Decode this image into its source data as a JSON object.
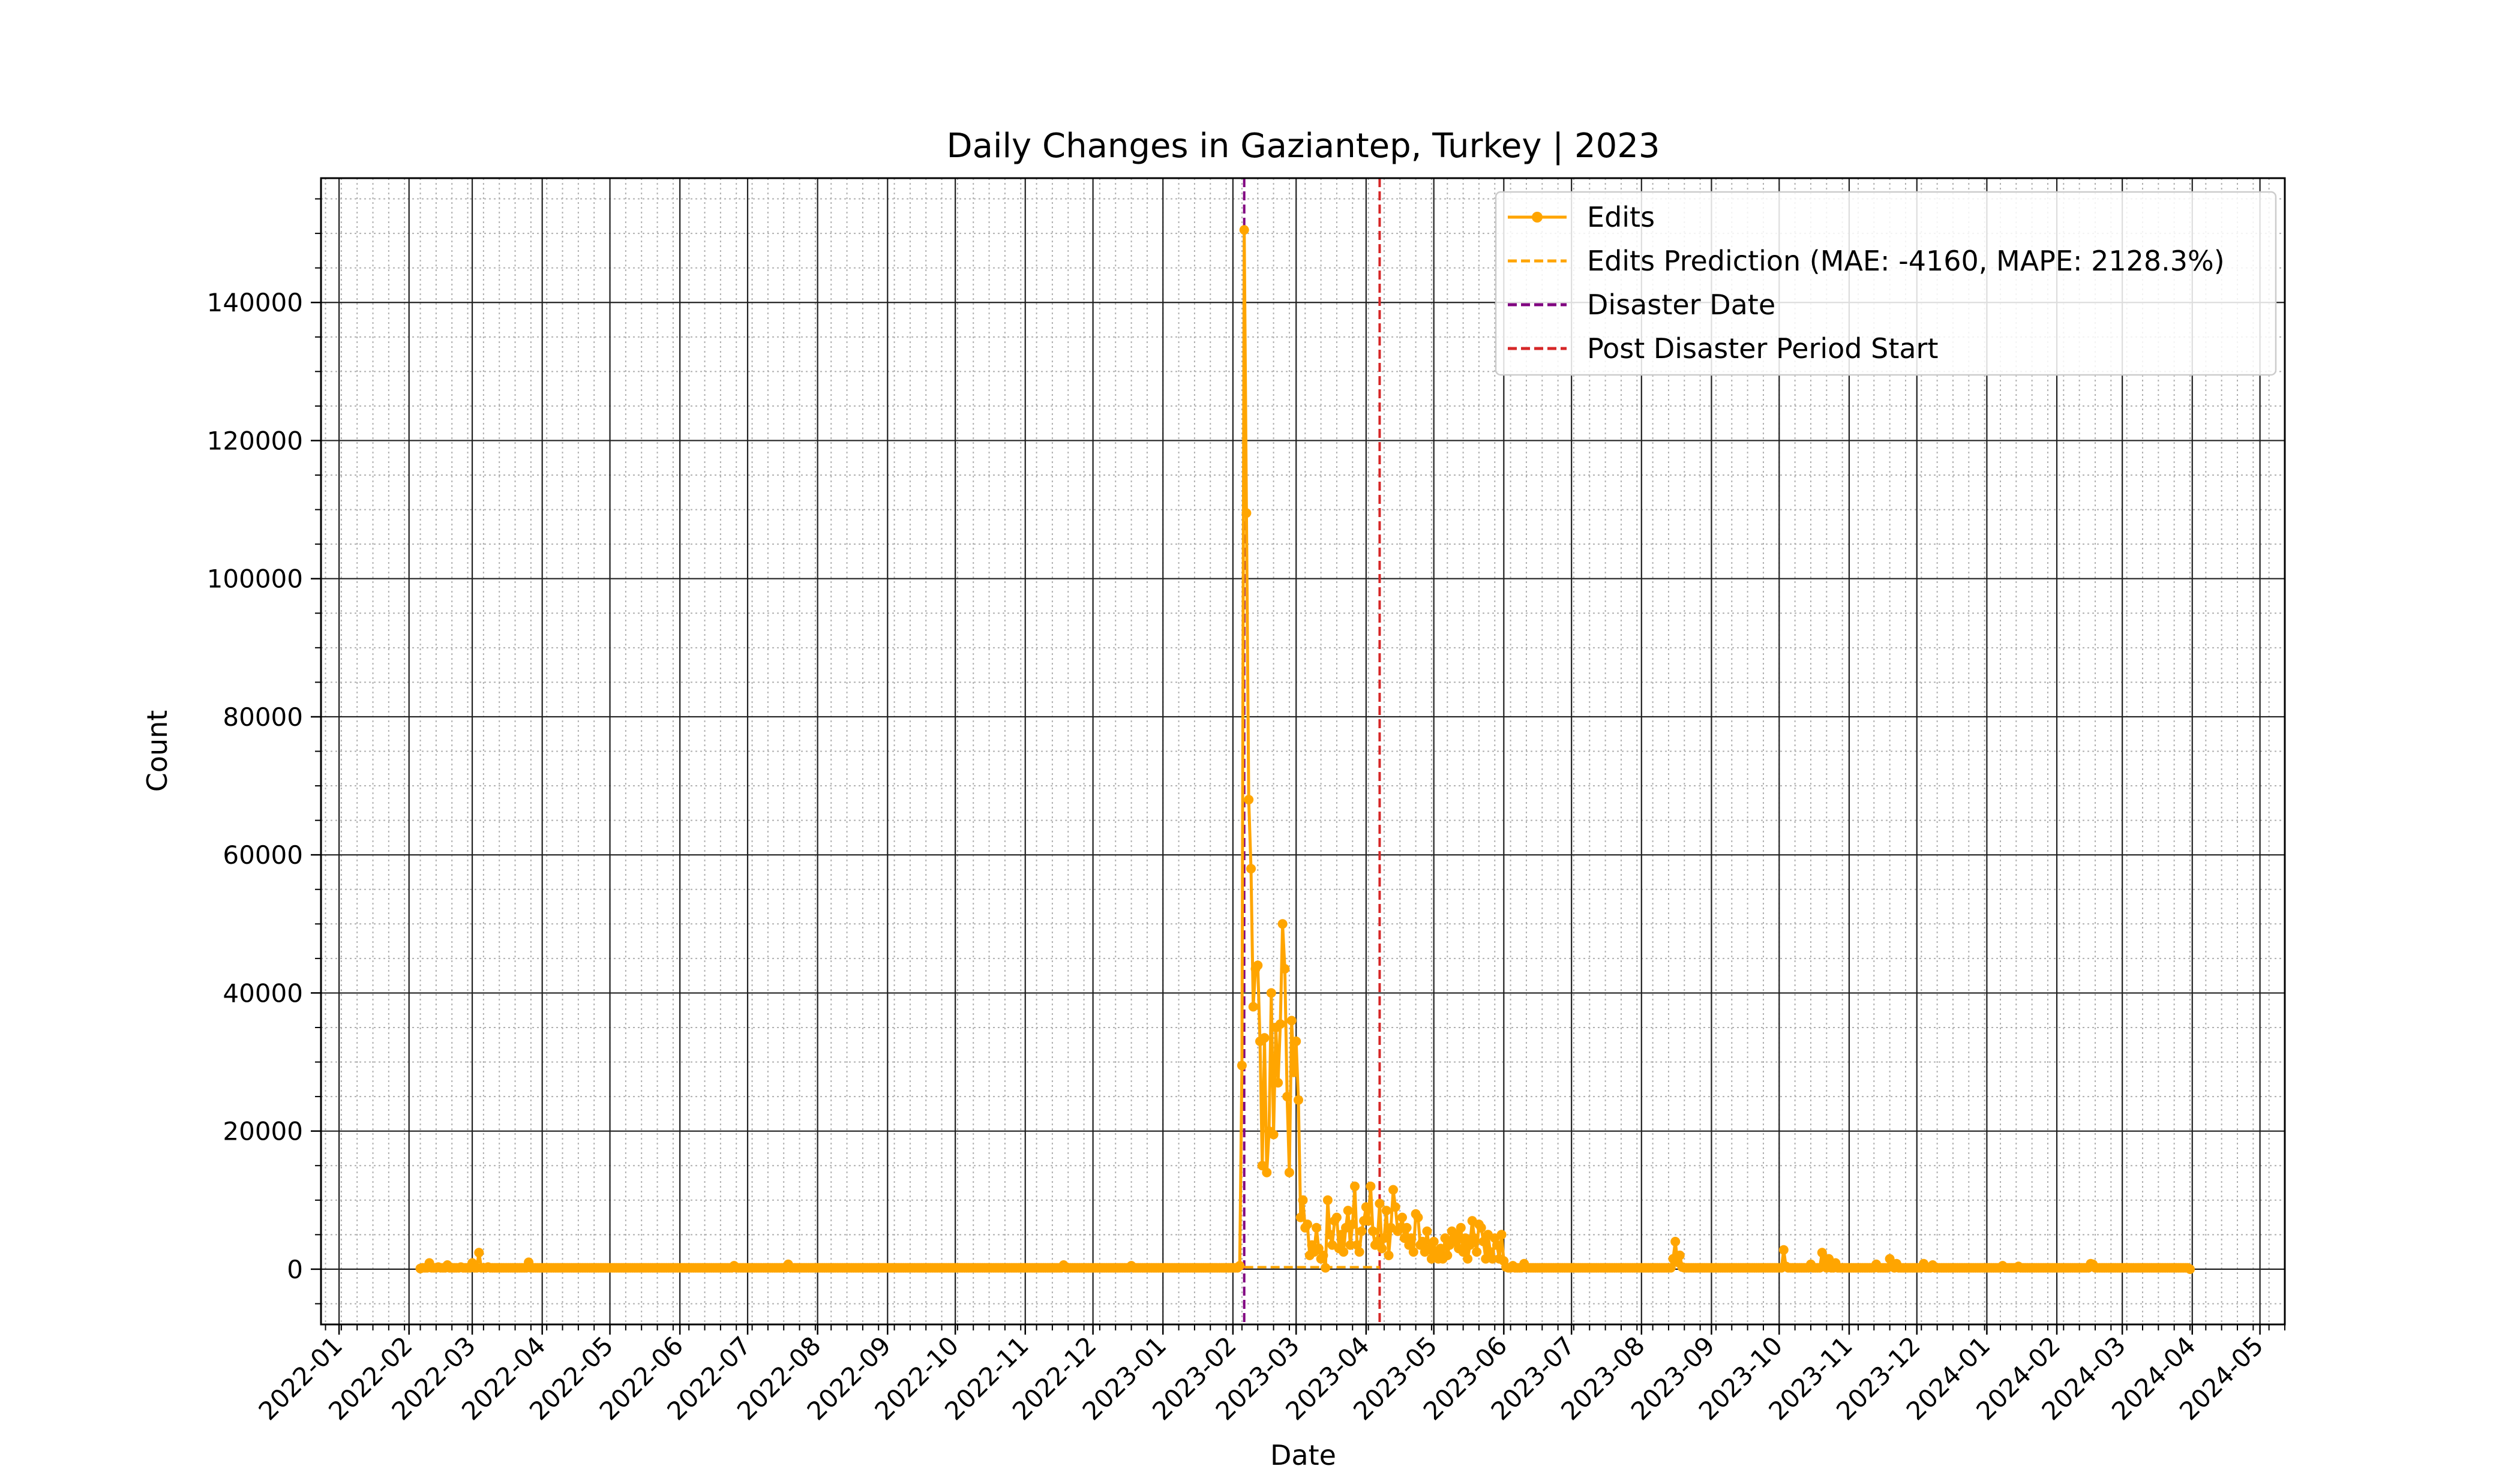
{
  "chart_data": {
    "type": "line",
    "title": "Daily Changes in Gaziantep, Turkey | 2023",
    "xlabel": "Date",
    "ylabel": "Count",
    "xlim": [
      "2021-12-24",
      "2024-05-12"
    ],
    "ylim": [
      -8000,
      158000
    ],
    "x_tick_labels": [
      "2022-01",
      "2022-02",
      "2022-03",
      "2022-04",
      "2022-05",
      "2022-06",
      "2022-07",
      "2022-08",
      "2022-09",
      "2022-10",
      "2022-11",
      "2022-12",
      "2023-01",
      "2023-02",
      "2023-03",
      "2023-04",
      "2023-05",
      "2023-06",
      "2023-07",
      "2023-08",
      "2023-09",
      "2023-10",
      "2023-11",
      "2023-12",
      "2024-01",
      "2024-02",
      "2024-03",
      "2024-04",
      "2024-05"
    ],
    "y_ticks": [
      0,
      20000,
      40000,
      60000,
      80000,
      100000,
      120000,
      140000
    ],
    "grid": "major and minor",
    "legend_position": "upper right",
    "legend": [
      {
        "label": "Edits",
        "color": "#ffa500",
        "style": "solid-marker"
      },
      {
        "label": "Edits Prediction (MAE: -4160, MAPE: 2128.3%)",
        "color": "#ffa500",
        "style": "dashed"
      },
      {
        "label": "Disaster Date",
        "color": "#800080",
        "style": "dashed"
      },
      {
        "label": "Post Disaster Period Start",
        "color": "#d62728",
        "style": "dashed"
      }
    ],
    "vlines": [
      {
        "name": "Disaster Date",
        "date": "2023-02-06",
        "color": "#800080"
      },
      {
        "name": "Post Disaster Period Start",
        "date": "2023-04-07",
        "color": "#d62728"
      }
    ],
    "series": [
      {
        "name": "Edits",
        "color": "#ffa500",
        "start": "2022-02-06",
        "end": "2024-03-31",
        "baseline": 200,
        "points": [
          [
            "2022-02-06",
            100
          ],
          [
            "2022-02-10",
            900
          ],
          [
            "2022-02-14",
            300
          ],
          [
            "2022-02-18",
            600
          ],
          [
            "2022-02-24",
            300
          ],
          [
            "2022-03-01",
            900
          ],
          [
            "2022-03-04",
            2400
          ],
          [
            "2022-03-08",
            300
          ],
          [
            "2022-03-26",
            1000
          ],
          [
            "2022-06-25",
            500
          ],
          [
            "2022-07-19",
            700
          ],
          [
            "2022-11-18",
            600
          ],
          [
            "2022-12-18",
            500
          ],
          [
            "2023-02-04",
            500
          ],
          [
            "2023-02-05",
            29500
          ],
          [
            "2023-02-06",
            150500
          ],
          [
            "2023-02-07",
            109500
          ],
          [
            "2023-02-08",
            68000
          ],
          [
            "2023-02-09",
            58000
          ],
          [
            "2023-02-10",
            38000
          ],
          [
            "2023-02-11",
            43500
          ],
          [
            "2023-02-12",
            44000
          ],
          [
            "2023-02-13",
            33000
          ],
          [
            "2023-02-14",
            15000
          ],
          [
            "2023-02-15",
            33500
          ],
          [
            "2023-02-16",
            14000
          ],
          [
            "2023-02-17",
            20000
          ],
          [
            "2023-02-18",
            40000
          ],
          [
            "2023-02-19",
            19500
          ],
          [
            "2023-02-20",
            35000
          ],
          [
            "2023-02-21",
            27000
          ],
          [
            "2023-02-22",
            35500
          ],
          [
            "2023-02-23",
            50000
          ],
          [
            "2023-02-24",
            43500
          ],
          [
            "2023-02-25",
            25000
          ],
          [
            "2023-02-26",
            14000
          ],
          [
            "2023-02-27",
            36000
          ],
          [
            "2023-02-28",
            28500
          ],
          [
            "2023-03-01",
            33000
          ],
          [
            "2023-03-02",
            24500
          ],
          [
            "2023-03-03",
            7500
          ],
          [
            "2023-03-04",
            10000
          ],
          [
            "2023-03-05",
            6000
          ],
          [
            "2023-03-06",
            6500
          ],
          [
            "2023-03-07",
            2000
          ],
          [
            "2023-03-08",
            3500
          ],
          [
            "2023-03-09",
            2500
          ],
          [
            "2023-03-10",
            6000
          ],
          [
            "2023-03-11",
            3000
          ],
          [
            "2023-03-12",
            1500
          ],
          [
            "2023-03-13",
            2000
          ],
          [
            "2023-03-15",
            10000
          ],
          [
            "2023-03-16",
            5000
          ],
          [
            "2023-03-17",
            3500
          ],
          [
            "2023-03-18",
            7000
          ],
          [
            "2023-03-19",
            7500
          ],
          [
            "2023-03-20",
            3000
          ],
          [
            "2023-03-21",
            5000
          ],
          [
            "2023-03-22",
            2500
          ],
          [
            "2023-03-23",
            6000
          ],
          [
            "2023-03-24",
            8500
          ],
          [
            "2023-03-25",
            3500
          ],
          [
            "2023-03-26",
            6500
          ],
          [
            "2023-03-27",
            12000
          ],
          [
            "2023-03-28",
            3500
          ],
          [
            "2023-03-29",
            2500
          ],
          [
            "2023-03-30",
            5500
          ],
          [
            "2023-03-31",
            7000
          ],
          [
            "2023-04-01",
            9000
          ],
          [
            "2023-04-02",
            7000
          ],
          [
            "2023-04-03",
            12000
          ],
          [
            "2023-04-04",
            5500
          ],
          [
            "2023-04-05",
            3500
          ],
          [
            "2023-04-06",
            4000
          ],
          [
            "2023-04-07",
            9500
          ],
          [
            "2023-04-08",
            3000
          ],
          [
            "2023-04-09",
            4500
          ],
          [
            "2023-04-10",
            8500
          ],
          [
            "2023-04-11",
            2000
          ],
          [
            "2023-04-12",
            6000
          ],
          [
            "2023-04-13",
            11500
          ],
          [
            "2023-04-14",
            9000
          ],
          [
            "2023-04-15",
            5500
          ],
          [
            "2023-04-16",
            6000
          ],
          [
            "2023-04-17",
            7500
          ],
          [
            "2023-04-18",
            4500
          ],
          [
            "2023-04-19",
            6000
          ],
          [
            "2023-04-20",
            3500
          ],
          [
            "2023-04-21",
            4500
          ],
          [
            "2023-04-22",
            2500
          ],
          [
            "2023-04-23",
            8000
          ],
          [
            "2023-04-24",
            7500
          ],
          [
            "2023-04-25",
            3500
          ],
          [
            "2023-04-26",
            4000
          ],
          [
            "2023-04-27",
            2500
          ],
          [
            "2023-04-28",
            5500
          ],
          [
            "2023-04-29",
            3000
          ],
          [
            "2023-04-30",
            1500
          ],
          [
            "2023-05-01",
            4000
          ],
          [
            "2023-05-02",
            2000
          ],
          [
            "2023-05-03",
            1500
          ],
          [
            "2023-05-04",
            3000
          ],
          [
            "2023-05-05",
            1500
          ],
          [
            "2023-05-06",
            4500
          ],
          [
            "2023-05-07",
            2000
          ],
          [
            "2023-05-08",
            3500
          ],
          [
            "2023-05-09",
            5500
          ],
          [
            "2023-05-10",
            4000
          ],
          [
            "2023-05-11",
            5000
          ],
          [
            "2023-05-12",
            3000
          ],
          [
            "2023-05-13",
            6000
          ],
          [
            "2023-05-14",
            2500
          ],
          [
            "2023-05-15",
            4500
          ],
          [
            "2023-05-16",
            1500
          ],
          [
            "2023-05-17",
            3500
          ],
          [
            "2023-05-18",
            7000
          ],
          [
            "2023-05-19",
            4500
          ],
          [
            "2023-05-20",
            2500
          ],
          [
            "2023-05-21",
            6500
          ],
          [
            "2023-05-22",
            6000
          ],
          [
            "2023-05-23",
            4000
          ],
          [
            "2023-05-24",
            1500
          ],
          [
            "2023-05-25",
            5000
          ],
          [
            "2023-05-26",
            2500
          ],
          [
            "2023-05-27",
            1500
          ],
          [
            "2023-05-28",
            4500
          ],
          [
            "2023-05-29",
            3500
          ],
          [
            "2023-05-30",
            1500
          ],
          [
            "2023-05-31",
            5000
          ],
          [
            "2023-06-01",
            1200
          ],
          [
            "2023-06-02",
            300
          ],
          [
            "2023-06-05",
            500
          ],
          [
            "2023-06-10",
            800
          ],
          [
            "2023-08-15",
            1500
          ],
          [
            "2023-08-16",
            4000
          ],
          [
            "2023-08-17",
            1000
          ],
          [
            "2023-08-18",
            2000
          ],
          [
            "2023-08-19",
            300
          ],
          [
            "2023-10-03",
            2800
          ],
          [
            "2023-10-04",
            400
          ],
          [
            "2023-10-15",
            700
          ],
          [
            "2023-10-20",
            2400
          ],
          [
            "2023-10-21",
            1000
          ],
          [
            "2023-10-23",
            1500
          ],
          [
            "2023-10-26",
            900
          ],
          [
            "2023-11-13",
            700
          ],
          [
            "2023-11-19",
            1500
          ],
          [
            "2023-11-20",
            600
          ],
          [
            "2023-11-22",
            800
          ],
          [
            "2023-12-04",
            800
          ],
          [
            "2023-12-08",
            600
          ],
          [
            "2024-01-08",
            500
          ],
          [
            "2024-01-15",
            400
          ],
          [
            "2024-02-16",
            800
          ],
          [
            "2024-02-17",
            700
          ],
          [
            "2024-03-31",
            0
          ]
        ]
      },
      {
        "name": "Edits Prediction (MAE: -4160, MAPE: 2128.3%)",
        "color": "#ffa500",
        "style": "dashed",
        "start": "2023-02-06",
        "end": "2023-04-07",
        "value": 300
      }
    ]
  }
}
